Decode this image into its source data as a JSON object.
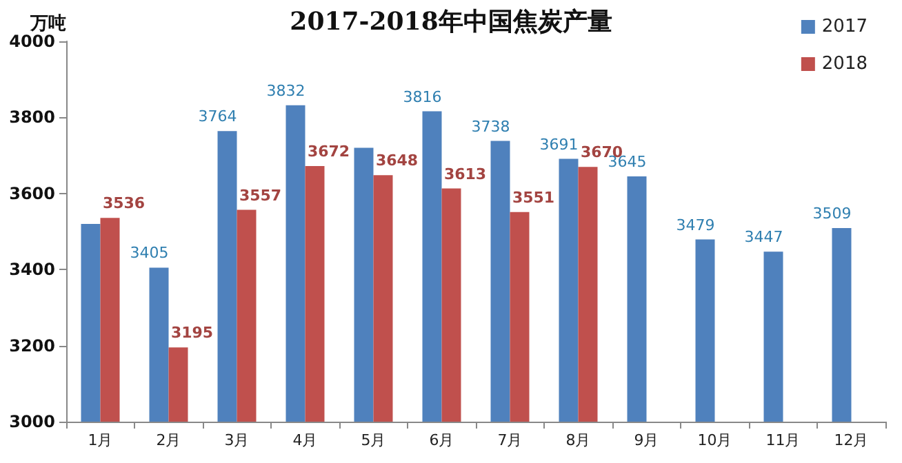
{
  "chart_data": {
    "type": "bar",
    "title": "2017-2018年中国焦炭产量",
    "ylabel": "万吨",
    "categories": [
      "1月",
      "2月",
      "3月",
      "4月",
      "5月",
      "6月",
      "7月",
      "8月",
      "9月",
      "10月",
      "11月",
      "12月"
    ],
    "series": [
      {
        "name": "2017",
        "color": "#4f81bd",
        "values": [
          3520,
          3405,
          3764,
          3832,
          3720,
          3816,
          3738,
          3691,
          3645,
          3479,
          3447,
          3509
        ],
        "value_labels": [
          null,
          "3405",
          "3764",
          "3832",
          null,
          "3816",
          "3738",
          "3691",
          "3645",
          "3479",
          "3447",
          "3509"
        ]
      },
      {
        "name": "2018",
        "color": "#c0504d",
        "values": [
          3536,
          3195,
          3557,
          3672,
          3648,
          3613,
          3551,
          3670,
          null,
          null,
          null,
          null
        ],
        "value_labels": [
          "3536",
          "3195",
          "3557",
          "3672",
          "3648",
          "3613",
          "3551",
          "3670",
          null,
          null,
          null,
          null
        ]
      }
    ],
    "ylim": [
      3000,
      4000
    ],
    "yticks": [
      3000,
      3200,
      3400,
      3600,
      3800,
      4000
    ],
    "grid": false,
    "legend": "top right"
  }
}
